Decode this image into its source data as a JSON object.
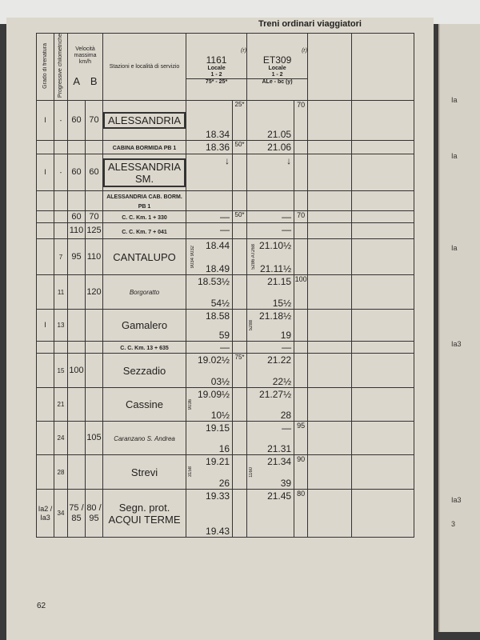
{
  "section_title": "Treni ordinari viaggiatori",
  "page_number": "62",
  "headers": {
    "grade": "Grado di frenatura",
    "km": "Progressive chilometriche",
    "speed": "Velocità massima km/h",
    "speed_a": "A",
    "speed_b": "B",
    "station": "Stazioni e località di servizio",
    "train1": {
      "number": "1161",
      "mark": "(r)",
      "type": "Locale",
      "class": "1 - 2",
      "note": "75* - 25*"
    },
    "train2": {
      "number": "ET309",
      "mark": "(r)",
      "type": "Locale",
      "class": "1 - 2",
      "note": "ALe - bc (y)"
    }
  },
  "rows": [
    {
      "grade": "I",
      "km": "-",
      "a": "60",
      "b": "70",
      "station": "ALESSANDRIA",
      "style": "box",
      "t1": [
        "",
        "18.34"
      ],
      "n1": "25*",
      "t2": [
        "",
        "21.05"
      ],
      "s2": "70",
      "tn1": "",
      "tn2": ""
    },
    {
      "grade": "",
      "km": "",
      "a": "",
      "b": "",
      "station": "CABINA BORMIDA PB 1",
      "style": "small",
      "t1": [
        "18.36",
        ""
      ],
      "n1": "50*",
      "t2": [
        "21.06",
        ""
      ],
      "s2": "",
      "tn1": "",
      "tn2": ""
    },
    {
      "grade": "I",
      "km": "-",
      "a": "60",
      "b": "60",
      "station": "ALESSANDRIA SM.",
      "style": "box",
      "t1": [
        "↓",
        ""
      ],
      "n1": "",
      "t2": [
        "↓",
        ""
      ],
      "s2": "",
      "tn1": "",
      "tn2": ""
    },
    {
      "grade": "",
      "km": "",
      "a": "",
      "b": "",
      "station": "ALESSANDRIA CAB. BORM. PB 1",
      "style": "small",
      "t1": [
        "",
        ""
      ],
      "n1": "",
      "t2": [
        "",
        ""
      ],
      "s2": "",
      "tn1": "",
      "tn2": ""
    },
    {
      "grade": "",
      "km": "",
      "a": "60",
      "b": "70",
      "station": "C. C. Km. 1 + 330",
      "style": "small",
      "t1": [
        "—",
        ""
      ],
      "n1": "50*",
      "t2": [
        "—",
        ""
      ],
      "s2": "70",
      "tn1": "",
      "tn2": ""
    },
    {
      "grade": "",
      "km": "",
      "a": "110",
      "b": "125",
      "station": "C. C. Km. 7 + 041",
      "style": "small",
      "t1": [
        "—",
        ""
      ],
      "n1": "",
      "t2": [
        "—",
        ""
      ],
      "s2": "",
      "tn1": "",
      "tn2": ""
    },
    {
      "grade": "",
      "km": "7",
      "a": "95",
      "b": "110",
      "station": "CANTALUPO",
      "style": "big",
      "t1": [
        "18.44",
        "18.49"
      ],
      "n1": "",
      "t2": [
        "21.10½",
        "21.11½"
      ],
      "s2": "",
      "tn1": "9034 9032",
      "tn2": "5286 AT268"
    },
    {
      "grade": "",
      "km": "11",
      "a": "",
      "b": "120",
      "station": "Borgoratto",
      "style": "it",
      "t1": [
        "18.53½",
        "54½"
      ],
      "n1": "",
      "t2": [
        "21.15",
        "15½"
      ],
      "s2": "100",
      "tn1": "",
      "tn2": ""
    },
    {
      "grade": "I",
      "km": "13",
      "a": "",
      "b": "",
      "station": "Gamalero",
      "style": "big",
      "t1": [
        "18.58",
        "59"
      ],
      "n1": "",
      "t2": [
        "21.18½",
        "19"
      ],
      "s2": "",
      "tn1": "",
      "tn2": "5288"
    },
    {
      "grade": "",
      "km": "",
      "a": "",
      "b": "",
      "station": "C. C. Km. 13 + 635",
      "style": "small",
      "t1": [
        "—",
        ""
      ],
      "n1": "",
      "t2": [
        "—",
        ""
      ],
      "s2": "",
      "tn1": "",
      "tn2": ""
    },
    {
      "grade": "",
      "km": "15",
      "a": "100",
      "b": "",
      "station": "Sezzadio",
      "style": "big",
      "t1": [
        "19.02½",
        "03½"
      ],
      "n1": "75*",
      "t2": [
        "21.22",
        "22½"
      ],
      "s2": "",
      "tn1": "",
      "tn2": ""
    },
    {
      "grade": "",
      "km": "21",
      "a": "",
      "b": "",
      "station": "Cassine",
      "style": "big",
      "t1": [
        "19.09½",
        "10½"
      ],
      "n1": "",
      "t2": [
        "21.27½",
        "28"
      ],
      "s2": "",
      "tn1": "9036",
      "tn2": ""
    },
    {
      "grade": "",
      "km": "24",
      "a": "",
      "b": "105",
      "station": "Caranzano S. Andrea",
      "style": "it",
      "t1": [
        "19.15",
        "16"
      ],
      "n1": "",
      "t2": [
        "—",
        "21.31"
      ],
      "s2": "95",
      "tn1": "",
      "tn2": ""
    },
    {
      "grade": "",
      "km": "28",
      "a": "",
      "b": "",
      "station": "Strevi",
      "style": "big",
      "t1": [
        "19.21",
        "26"
      ],
      "n1": "",
      "t2": [
        "21.34",
        "39"
      ],
      "s2": "90",
      "tn1": "3158",
      "tn2": "1160"
    },
    {
      "grade": "Ia2 / Ia3",
      "km": "34",
      "a": "75 / 85",
      "b": "80 / 95",
      "station": "Segn. prot. ACQUI TERME",
      "style": "big",
      "t1": [
        "19.33",
        "19.43"
      ],
      "n1": "",
      "t2": [
        "21.45",
        ""
      ],
      "s2": "80",
      "tn1": "",
      "tn2": ""
    }
  ],
  "right_page": {
    "labels": [
      "Ia",
      "Ia",
      "Ia",
      "Ia3",
      "Ia3",
      "3"
    ]
  }
}
